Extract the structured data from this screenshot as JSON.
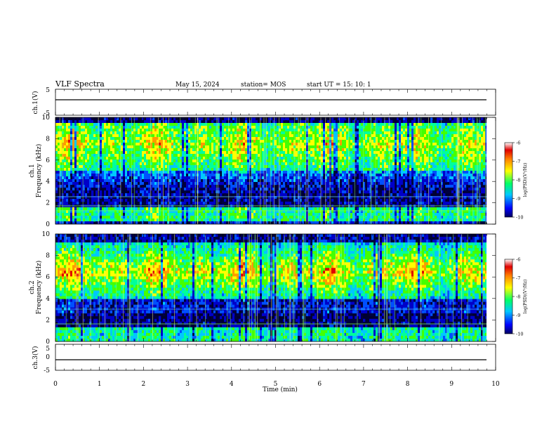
{
  "header": {
    "title": "VLF Spectra",
    "date": "May 15, 2024",
    "station": "station= MOS",
    "start": "start  UT =   15: 10: 1"
  },
  "chart_data": [
    {
      "type": "line",
      "ylabel": "ch.1(V)",
      "ylim": [
        -5,
        5
      ],
      "yticks": [
        "5",
        "-5"
      ],
      "xlim": [
        0,
        10
      ],
      "series": [
        {
          "values_constant": -0.2
        }
      ]
    },
    {
      "type": "heatmap",
      "ylabel": "ch.1\nFrequency (kHz)",
      "ylabel_lines": [
        "ch.1",
        "Frequency (kHz)"
      ],
      "ylim": [
        0,
        10
      ],
      "yticks": [
        "0",
        "2",
        "4",
        "6",
        "8",
        "10"
      ],
      "xlim": [
        0,
        9.85
      ],
      "colorbar": {
        "label": "log(PSD)(V²/Hz)",
        "range": [
          -10,
          -6
        ],
        "ticks": [
          "-6",
          "-7",
          "-8",
          "-9",
          "-10"
        ],
        "colors": [
          "#000060",
          "#0000ff",
          "#00c8ff",
          "#00ff66",
          "#ffff00",
          "#ff7f00",
          "#e00000",
          "#ffffff"
        ]
      },
      "note": "intense band ~5.5-9.5 kHz, lower band 0.3-1.5 kHz"
    },
    {
      "type": "heatmap",
      "ylabel": "ch.2\nFrequency (kHz)",
      "ylabel_lines": [
        "ch.2",
        "Frequency (kHz)"
      ],
      "ylim": [
        0,
        10
      ],
      "yticks": [
        "0",
        "2",
        "4",
        "6",
        "8",
        "10"
      ],
      "xlim": [
        0,
        9.85
      ],
      "colorbar": {
        "label": "log(PSD)(V²/Hz)",
        "range": [
          -10,
          -6
        ],
        "ticks": [
          "-6",
          "-7",
          "-8",
          "-9",
          "-10"
        ]
      },
      "note": "intense band ~5-8 kHz peaking near 6.5 kHz"
    },
    {
      "type": "line",
      "ylabel": "ch.3(V)",
      "ylim": [
        -5,
        5
      ],
      "yticks": [
        "5",
        "0",
        "-5"
      ],
      "xlim": [
        0,
        10
      ],
      "series": [
        {
          "values_constant": -0.2
        }
      ]
    }
  ],
  "xaxis": {
    "label": "Time  (min)",
    "ticks": [
      "0",
      "1",
      "2",
      "3",
      "4",
      "5",
      "6",
      "7",
      "8",
      "9",
      "10"
    ],
    "range": [
      0,
      10
    ]
  }
}
